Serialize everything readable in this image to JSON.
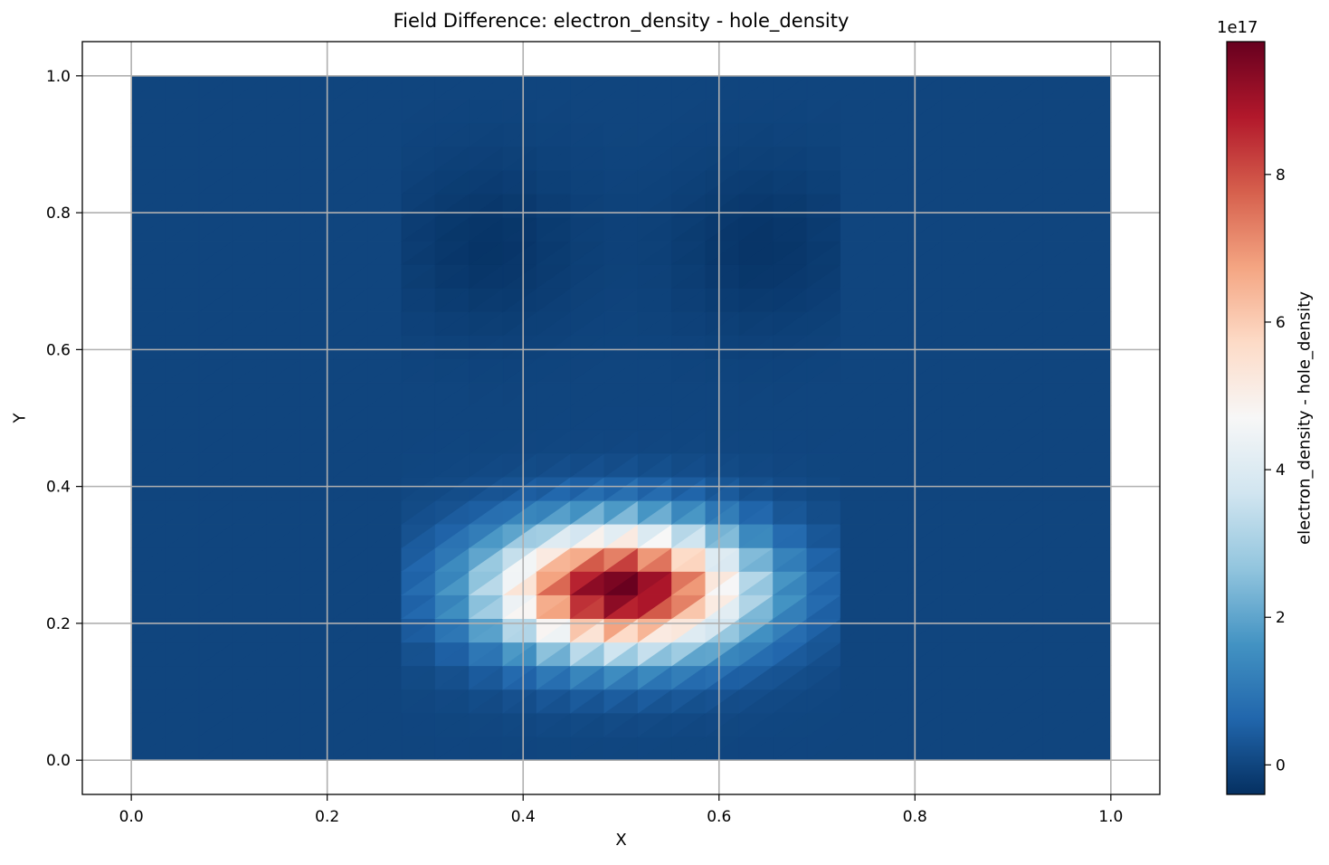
{
  "chart_data": {
    "type": "heatmap",
    "title": "Field Difference: electron_density - hole_density",
    "xlabel": "X",
    "ylabel": "Y",
    "xlim": [
      -0.05,
      1.05
    ],
    "ylim": [
      -0.05,
      1.05
    ],
    "xticks": [
      "0.0",
      "0.2",
      "0.4",
      "0.6",
      "0.8",
      "1.0"
    ],
    "yticks": [
      "0.0",
      "0.2",
      "0.4",
      "0.6",
      "0.8",
      "1.0"
    ],
    "grid": true,
    "colormap": "RdBu_r",
    "colorbar": {
      "label": "electron_density - hole_density",
      "exponent": "1e17",
      "vmin": -0.4,
      "vmax": 9.8,
      "ticks": [
        "0",
        "2",
        "4",
        "6",
        "8"
      ]
    },
    "field": {
      "domain_x": [
        0.0,
        1.0
      ],
      "domain_y": [
        0.0,
        1.0
      ],
      "active_x": [
        0.275,
        0.725
      ],
      "background_value": 0.0,
      "peak": {
        "x": 0.5,
        "y": 0.25,
        "value": 9.8
      },
      "trough_values": [
        {
          "x": 0.35,
          "y": 0.75,
          "value": -0.4
        },
        {
          "x": 0.66,
          "y": 0.75,
          "value": -0.4
        }
      ]
    }
  }
}
